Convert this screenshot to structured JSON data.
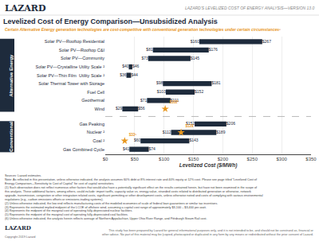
{
  "chart_data": {
    "type": "bar",
    "orientation": "horizontal",
    "title": "Levelized Cost of Energy Comparison—Unsubsidized Analysis",
    "subtitle": "Certain Alternative Energy generation technologies are cost-competitive with conventional generation technologies under certain circumstances¹",
    "header_left": "LAZARD",
    "header_right": "LAZARD’S LEVELIZED COST OF ENERGY ANALYSIS—VERSION 13.0",
    "xlabel": "Levelized Cost ($/MWh)",
    "xlim": [
      0,
      350
    ],
    "xticks": [
      {
        "value": 0,
        "label": "$0"
      },
      {
        "value": 50,
        "label": "$50"
      },
      {
        "value": 100,
        "label": "$100"
      },
      {
        "value": 150,
        "label": "$150"
      },
      {
        "value": 200,
        "label": "$200"
      },
      {
        "value": 250,
        "label": "$250"
      },
      {
        "value": 300,
        "label": "$300"
      },
      {
        "value": 350,
        "label": "$350"
      }
    ],
    "grid": true,
    "data_labels": true,
    "color": "#1e2b3c",
    "marker": "star",
    "marker_color": "#e8971e",
    "groups": [
      {
        "label": "Alternative Energy",
        "categories": [
          "Solar PV—Rooftop Residential",
          "Solar PV—Rooftop C&I",
          "Solar PV—Community",
          "Solar PV—Crystalline Utility Scale ²",
          "Solar PV—Thin Film  Utility Scale ²",
          "Solar Thermal Tower with Storage",
          "Fuel Cell",
          "Geothermal",
          "Wind"
        ],
        "low": [
          160,
          81,
          73,
          40,
          36,
          98,
          103,
          71,
          29
        ],
        "high": [
          267,
          176,
          145,
          46,
          44,
          181,
          152,
          111,
          56
        ],
        "low_labels": [
          "$160",
          "$81",
          "$73",
          "$40",
          "$36",
          "$98",
          "$103",
          "$71",
          "$29"
        ],
        "high_labels": [
          "$267",
          "$176",
          "$145",
          "$46",
          "$44",
          "$181",
          "$152",
          "$111",
          "$56"
        ],
        "markers": [
          {
            "category": "Wind",
            "value": 102,
            "label": "$102³"
          }
        ]
      },
      {
        "label": "Conventional",
        "categories": [
          "Gas Peaking",
          "Nuclear ²",
          "Coal ²",
          "Gas Combined Cycle"
        ],
        "low": [
          152,
          112,
          60,
          41
        ],
        "high": [
          206,
          189,
          143,
          74
        ],
        "low_labels": [
          "$152",
          "$112",
          "$60",
          "$41"
        ],
        "high_labels": [
          "$206",
          "$189",
          "$143",
          "$74"
        ],
        "markers": [
          {
            "category": "Nuclear ²",
            "value": 129,
            "label": "$129´"
          },
          {
            "category": "Coal ²",
            "value": 33,
            "label": "$33⁵"
          }
        ]
      }
    ],
    "notes": [
      "Sources: Lazard estimates.",
      "Note: As reflected in this presentation, unless otherwise indicated, the analysis assumes 60% debt at 8% interest rate and 40% equity at 12% cost. Please see page titled “Levelized Cost of Energy Comparison—Sensitivity to Cost of Capital” for cost of capital sensitivities.",
      "(1) Such observation does not reflect numerous other factors that would also have a potentially significant effect on the results contained herein, but have not been examined in the scope of this analysis. These additional factors, among others, could include: import tariffs, capacity value vs. energy value, stranded costs related to distributed generation or otherwise, network upgrade, transmission, congestion or other integration related costs, significant permitting or other development costs, unless otherwise noted and costs of complying with various environmental regulations (e.g., carbon emissions offsets or emissions-trading systems).",
      "(2) Unless otherwise indicated, the low end reflects manufacturing costs of the modeled economies of scale of federal loan guarantees or similar tax incentives.",
      "(3) Represents the estimated implied midpoint of the LCOE of offshore wind, assuming a capital cost range of approximately $3,100 – $3,400 per-watt.",
      "(4) Represents the midpoint of the marginal cost of operating fully-depreciated nuclear facilities.",
      "(5) Represents the midpoint of the marginal cost of operating fully-depreciated coal facilities.",
      "(6) Unless otherwise indicated, the analysis herein reflects average of Northern Appalachian, Upper Ohio River Range, and Pittsburgh Steam Rail cost."
    ],
    "footer_logo": "LAZARD",
    "copyright": "Copyright 2019 Lazard",
    "disclaimer": [
      "This study has been prepared by Lazard for general informational purposes only, and it is not intended to be, and should not be construed as, financial or",
      "other advice. No part of this material may be (copied, photocopied or duplicated in any form by any means or redistributed without the prior consent of Lazard."
    ]
  }
}
